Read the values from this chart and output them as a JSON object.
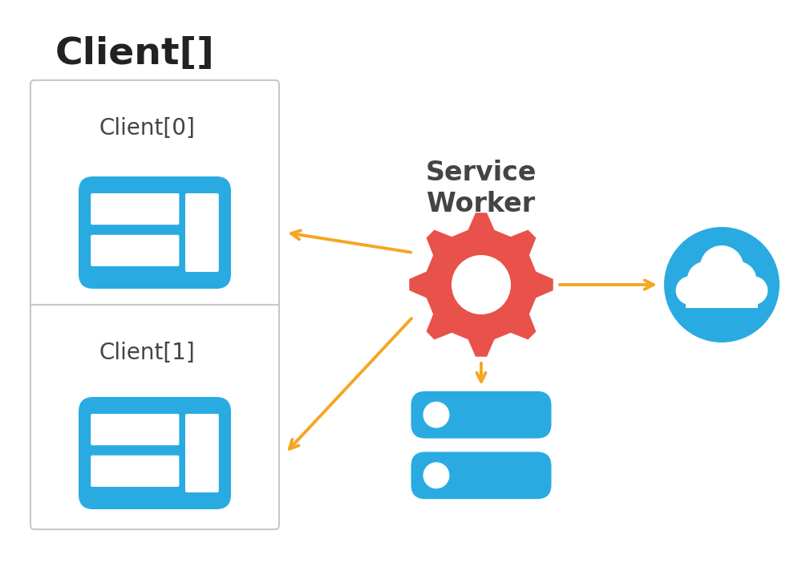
{
  "bg_color": "#ffffff",
  "title_client_array": "Client[]",
  "title_color": "#222222",
  "title_fontsize": 34,
  "client_labels": [
    "Client[0]",
    "Client[1]"
  ],
  "client_label_color": "#444444",
  "client_label_fontsize": 20,
  "sw_label": "Service\nWorker",
  "sw_label_color": "#444444",
  "sw_label_fontsize": 24,
  "outer_box_color": "#c8c8c8",
  "browser_icon_color": "#29abe2",
  "gear_color": "#e8524a",
  "cloud_color": "#29abe2",
  "db_color": "#29abe2",
  "arrow_color": "#f5a623",
  "arrow_lw": 2.8
}
